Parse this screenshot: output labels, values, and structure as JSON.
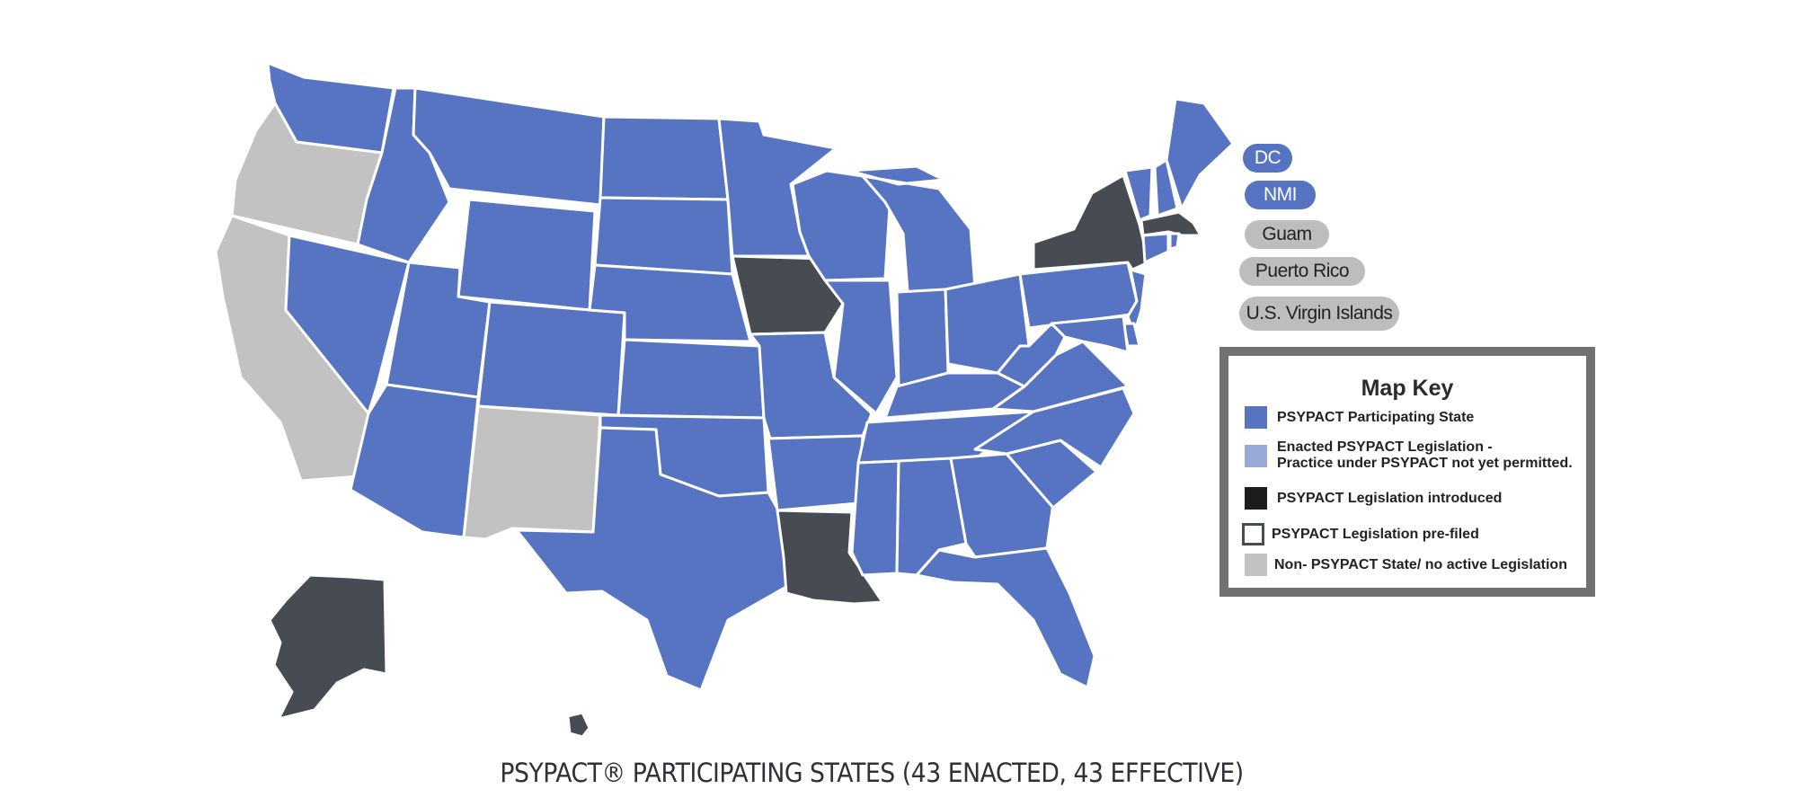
{
  "title": "PSYPACT® PARTICIPATING STATES (43 ENACTED, 43 EFFECTIVE)",
  "colors": {
    "participating": "#5674c1",
    "enacted_not_permitted": "#9aaad8",
    "introduced": "#474b52",
    "prefiled_border": "#474b52",
    "non_psypact": "#c2c2c2"
  },
  "territories": [
    {
      "label": "DC",
      "status": "participating"
    },
    {
      "label": "NMI",
      "status": "participating"
    },
    {
      "label": "Guam",
      "status": "none"
    },
    {
      "label": "Puerto Rico",
      "status": "none"
    },
    {
      "label": "U.S. Virgin Islands",
      "status": "none"
    }
  ],
  "map_key": {
    "title": "Map Key",
    "items": [
      {
        "swatch": "participating",
        "label": "PSYPACT Participating State"
      },
      {
        "swatch": "enacted_not_permitted",
        "label": "Enacted PSYPACT Legislation -\nPractice under PSYPACT not yet permitted."
      },
      {
        "swatch": "introduced",
        "label": "PSYPACT Legislation introduced"
      },
      {
        "swatch": "prefiled",
        "label": "PSYPACT Legislation  pre-filed"
      },
      {
        "swatch": "non_psypact",
        "label": "Non- PSYPACT State/ no active Legislation"
      }
    ]
  },
  "states": {
    "WA": "participating",
    "OR": "none",
    "CA": "none",
    "ID": "participating",
    "NV": "participating",
    "MT": "participating",
    "WY": "participating",
    "UT": "participating",
    "AZ": "participating",
    "CO": "participating",
    "NM": "none",
    "ND": "participating",
    "SD": "participating",
    "NE": "participating",
    "KS": "participating",
    "OK": "participating",
    "TX": "participating",
    "MN": "participating",
    "IA": "introduced",
    "MO": "participating",
    "AR": "participating",
    "LA": "introduced",
    "WI": "participating",
    "IL": "participating",
    "MI": "participating",
    "IN": "participating",
    "OH": "participating",
    "KY": "participating",
    "TN": "participating",
    "MS": "participating",
    "AL": "participating",
    "GA": "participating",
    "FL": "participating",
    "SC": "participating",
    "NC": "participating",
    "VA": "participating",
    "WV": "participating",
    "PA": "participating",
    "NY": "introduced",
    "VT": "participating",
    "NH": "participating",
    "ME": "participating",
    "MA": "introduced",
    "RI": "participating",
    "CT": "participating",
    "NJ": "participating",
    "DE": "participating",
    "MD": "participating",
    "AK": "introduced",
    "HI": "introduced"
  }
}
